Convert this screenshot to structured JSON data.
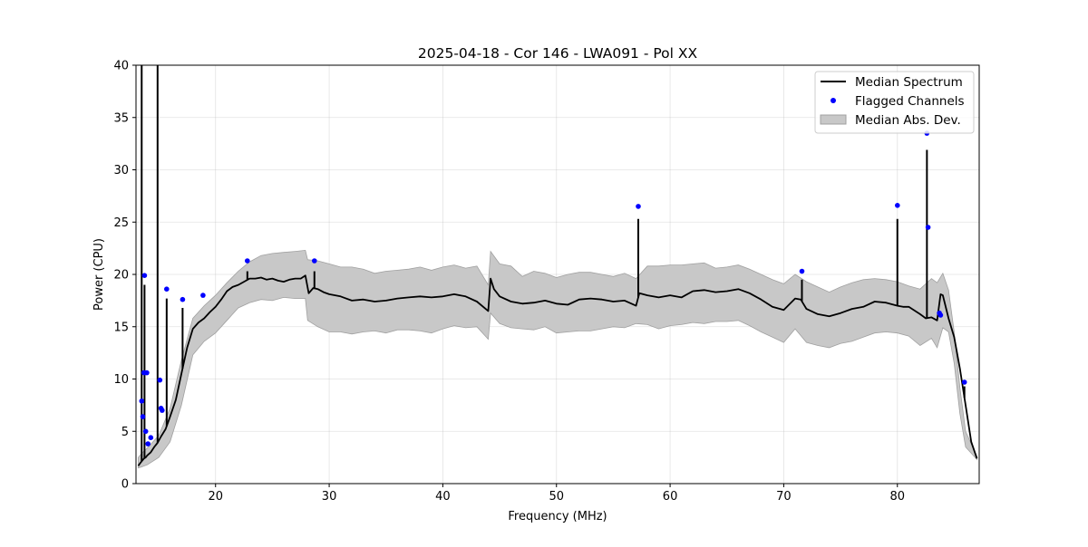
{
  "chart_data": {
    "type": "line",
    "title": "2025-04-18 - Cor 146 - LWA091 - Pol XX",
    "xlabel": "Frequency (MHz)",
    "ylabel": "Power (CPU)",
    "xlim": [
      13.0,
      87.2
    ],
    "ylim": [
      0,
      40
    ],
    "xticks": [
      20,
      30,
      40,
      50,
      60,
      70,
      80
    ],
    "yticks": [
      0,
      5,
      10,
      15,
      20,
      25,
      30,
      35,
      40
    ],
    "grid": true,
    "legend_position": "top-right",
    "legend": [
      "Median Spectrum",
      "Flagged Channels",
      "Median Abs. Dev."
    ],
    "colors": {
      "median": "#000000",
      "flagged": "#0000ff",
      "mad": "#c8c8c8",
      "mad_edge": "#a0a0a0"
    },
    "series": [
      {
        "name": "Median Spectrum",
        "kind": "line",
        "x": [
          13.2,
          13.4,
          13.55,
          13.7,
          13.85,
          14.0,
          14.3,
          14.6,
          14.9,
          15.2,
          15.6,
          16.0,
          16.5,
          17.0,
          17.5,
          18.0,
          18.5,
          19.0,
          19.5,
          20.0,
          20.5,
          21.0,
          21.5,
          22.0,
          22.5,
          23.0,
          23.5,
          24.0,
          24.5,
          25.0,
          25.5,
          26.0,
          26.5,
          27.0,
          27.5,
          27.9,
          28.2,
          28.6,
          29.0,
          29.5,
          30.0,
          31.0,
          32.0,
          33.0,
          34.0,
          35.0,
          36.0,
          37.0,
          38.0,
          39.0,
          40.0,
          41.0,
          42.0,
          43.0,
          44.0,
          44.2,
          44.5,
          45.0,
          46.0,
          47.0,
          48.0,
          49.0,
          50.0,
          51.0,
          52.0,
          53.0,
          54.0,
          55.0,
          56.0,
          57.0,
          57.3,
          58.0,
          59.0,
          60.0,
          61.0,
          62.0,
          63.0,
          64.0,
          65.0,
          66.0,
          67.0,
          68.0,
          69.0,
          70.0,
          71.0,
          71.5,
          72.0,
          73.0,
          74.0,
          75.0,
          76.0,
          77.0,
          78.0,
          79.0,
          80.0,
          80.5,
          81.0,
          82.0,
          82.5,
          83.0,
          83.5,
          83.8,
          84.0,
          84.5,
          85.0,
          85.5,
          86.0,
          86.5,
          87.0
        ],
        "y": [
          1.7,
          2.0,
          2.2,
          2.4,
          2.5,
          2.7,
          3.0,
          3.5,
          3.9,
          4.5,
          5.2,
          6.4,
          8.0,
          10.5,
          13.0,
          14.8,
          15.4,
          15.8,
          16.4,
          16.9,
          17.6,
          18.4,
          18.8,
          19.0,
          19.3,
          19.6,
          19.6,
          19.7,
          19.5,
          19.6,
          19.4,
          19.3,
          19.5,
          19.6,
          19.6,
          19.9,
          18.2,
          18.7,
          18.6,
          18.3,
          18.1,
          17.9,
          17.5,
          17.6,
          17.4,
          17.5,
          17.7,
          17.8,
          17.9,
          17.8,
          17.9,
          18.1,
          17.9,
          17.4,
          16.5,
          19.6,
          18.6,
          17.9,
          17.4,
          17.2,
          17.3,
          17.5,
          17.2,
          17.1,
          17.6,
          17.7,
          17.6,
          17.4,
          17.5,
          17.0,
          18.2,
          18.0,
          17.8,
          18.0,
          17.8,
          18.4,
          18.5,
          18.3,
          18.4,
          18.6,
          18.2,
          17.6,
          16.9,
          16.6,
          17.7,
          17.6,
          16.7,
          16.2,
          16.0,
          16.3,
          16.7,
          16.9,
          17.4,
          17.3,
          17.0,
          16.9,
          16.9,
          16.2,
          15.8,
          15.9,
          15.6,
          18.1,
          18.0,
          15.8,
          14.0,
          11.0,
          7.5,
          4.0,
          2.4
        ]
      },
      {
        "name": "Median Abs. Dev.",
        "kind": "band",
        "x": [
          13.2,
          13.5,
          14.0,
          15.0,
          16.0,
          17.0,
          18.0,
          19.0,
          20.0,
          21.0,
          22.0,
          23.0,
          24.0,
          25.0,
          26.0,
          27.0,
          27.9,
          28.1,
          29.0,
          30.0,
          31.0,
          32.0,
          33.0,
          34.0,
          35.0,
          36.0,
          37.0,
          38.0,
          39.0,
          40.0,
          41.0,
          42.0,
          43.0,
          44.0,
          44.2,
          45.0,
          46.0,
          47.0,
          48.0,
          49.0,
          50.0,
          51.0,
          52.0,
          53.0,
          54.0,
          55.0,
          56.0,
          57.0,
          58.0,
          59.0,
          60.0,
          61.0,
          62.0,
          63.0,
          64.0,
          65.0,
          66.0,
          67.0,
          68.0,
          69.0,
          70.0,
          71.0,
          72.0,
          73.0,
          74.0,
          75.0,
          76.0,
          77.0,
          78.0,
          79.0,
          80.0,
          81.0,
          82.0,
          83.0,
          83.5,
          84.0,
          84.5,
          85.0,
          85.5,
          86.0,
          87.0
        ],
        "upper": [
          2.5,
          2.9,
          3.4,
          4.6,
          7.2,
          11.8,
          15.8,
          17.0,
          18.0,
          19.2,
          20.3,
          21.2,
          21.8,
          22.0,
          22.1,
          22.2,
          22.3,
          21.4,
          21.3,
          21.0,
          20.7,
          20.7,
          20.5,
          20.1,
          20.3,
          20.4,
          20.5,
          20.7,
          20.4,
          20.7,
          20.9,
          20.6,
          20.8,
          19.0,
          22.2,
          21.0,
          20.8,
          19.8,
          20.3,
          20.1,
          19.7,
          20.0,
          20.2,
          20.2,
          20.0,
          19.8,
          20.1,
          19.6,
          20.8,
          20.8,
          20.9,
          20.9,
          21.0,
          21.1,
          20.6,
          20.7,
          20.9,
          20.5,
          20.0,
          19.5,
          19.1,
          20.0,
          19.3,
          18.8,
          18.3,
          18.8,
          19.2,
          19.5,
          19.6,
          19.5,
          19.3,
          18.9,
          18.6,
          19.6,
          19.2,
          20.1,
          18.5,
          14.5,
          9.2,
          5.0,
          2.6
        ],
        "lower": [
          1.5,
          1.6,
          1.8,
          2.5,
          4.0,
          7.5,
          12.3,
          13.6,
          14.4,
          15.6,
          16.8,
          17.3,
          17.6,
          17.5,
          17.8,
          17.7,
          17.7,
          15.6,
          15.0,
          14.5,
          14.5,
          14.3,
          14.5,
          14.6,
          14.4,
          14.7,
          14.7,
          14.6,
          14.4,
          14.8,
          15.1,
          14.9,
          15.0,
          13.8,
          16.3,
          15.3,
          14.9,
          14.8,
          14.7,
          15.0,
          14.4,
          14.5,
          14.6,
          14.6,
          14.8,
          15.0,
          14.9,
          15.3,
          15.2,
          14.8,
          15.1,
          15.2,
          15.4,
          15.3,
          15.5,
          15.5,
          15.6,
          15.1,
          14.5,
          14.0,
          13.5,
          14.8,
          13.5,
          13.2,
          13.0,
          13.4,
          13.6,
          14.0,
          14.4,
          14.5,
          14.4,
          14.1,
          13.2,
          13.9,
          13.0,
          14.9,
          14.5,
          11.5,
          6.7,
          3.5,
          2.3
        ]
      },
      {
        "name": "Flagged Channels",
        "kind": "points",
        "x": [
          13.5,
          13.6,
          13.7,
          13.75,
          13.85,
          13.95,
          14.05,
          14.3,
          15.1,
          15.2,
          15.3,
          15.7,
          17.1,
          18.9,
          22.8,
          28.7,
          57.2,
          71.6,
          80.0,
          82.6,
          82.7,
          83.7,
          83.8,
          85.9
        ],
        "y": [
          7.9,
          6.4,
          10.6,
          19.9,
          5.0,
          10.6,
          3.8,
          4.4,
          9.9,
          7.2,
          7.0,
          18.6,
          17.6,
          18.0,
          21.3,
          21.3,
          26.5,
          20.3,
          26.6,
          33.5,
          24.5,
          16.3,
          16.1,
          9.7
        ]
      }
    ],
    "spikes": [
      {
        "x": 13.5,
        "y": 40.0
      },
      {
        "x": 13.75,
        "y": 19.0
      },
      {
        "x": 14.9,
        "y": 40.0
      },
      {
        "x": 15.7,
        "y": 17.7
      },
      {
        "x": 17.1,
        "y": 16.8
      },
      {
        "x": 22.8,
        "y": 20.3
      },
      {
        "x": 28.7,
        "y": 20.3
      },
      {
        "x": 57.2,
        "y": 25.3
      },
      {
        "x": 71.6,
        "y": 19.5
      },
      {
        "x": 80.0,
        "y": 25.3
      },
      {
        "x": 82.6,
        "y": 31.9
      },
      {
        "x": 85.9,
        "y": 9.3
      }
    ]
  }
}
